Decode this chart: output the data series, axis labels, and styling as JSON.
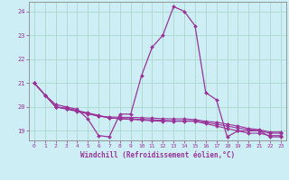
{
  "xlabel": "Windchill (Refroidissement éolien,°C)",
  "background_color": "#cdeef5",
  "grid_color": "#aad8cc",
  "line_color": "#993399",
  "spine_color": "#888888",
  "ylim": [
    18.6,
    24.4
  ],
  "xlim": [
    -0.5,
    23.5
  ],
  "yticks": [
    19,
    20,
    21,
    22,
    23,
    24
  ],
  "xticks": [
    0,
    1,
    2,
    3,
    4,
    5,
    6,
    7,
    8,
    9,
    10,
    11,
    12,
    13,
    14,
    15,
    16,
    17,
    18,
    19,
    20,
    21,
    22,
    23
  ],
  "hours": [
    0,
    1,
    2,
    3,
    4,
    5,
    6,
    7,
    8,
    9,
    10,
    11,
    12,
    13,
    14,
    15,
    16,
    17,
    18,
    19,
    20,
    21,
    22,
    23
  ],
  "line1": [
    21.0,
    20.5,
    20.1,
    20.0,
    19.9,
    19.5,
    18.8,
    18.75,
    19.7,
    19.7,
    21.3,
    22.5,
    23.0,
    24.2,
    24.0,
    23.4,
    20.6,
    20.3,
    18.75,
    19.0,
    19.0,
    19.0,
    18.75,
    18.75
  ],
  "line2": [
    21.0,
    20.5,
    20.0,
    19.95,
    19.85,
    19.75,
    19.65,
    19.55,
    19.5,
    19.48,
    19.45,
    19.42,
    19.4,
    19.4,
    19.4,
    19.4,
    19.3,
    19.2,
    19.1,
    19.0,
    18.9,
    18.9,
    18.8,
    18.8
  ],
  "line3": [
    21.0,
    20.5,
    20.0,
    19.93,
    19.83,
    19.73,
    19.63,
    19.53,
    19.52,
    19.5,
    19.48,
    19.46,
    19.44,
    19.42,
    19.42,
    19.42,
    19.35,
    19.28,
    19.2,
    19.12,
    19.05,
    19.0,
    18.9,
    18.9
  ],
  "line4": [
    21.0,
    20.5,
    20.0,
    19.91,
    19.81,
    19.71,
    19.61,
    19.58,
    19.57,
    19.56,
    19.55,
    19.53,
    19.51,
    19.5,
    19.5,
    19.47,
    19.4,
    19.36,
    19.28,
    19.2,
    19.1,
    19.05,
    18.95,
    18.95
  ]
}
